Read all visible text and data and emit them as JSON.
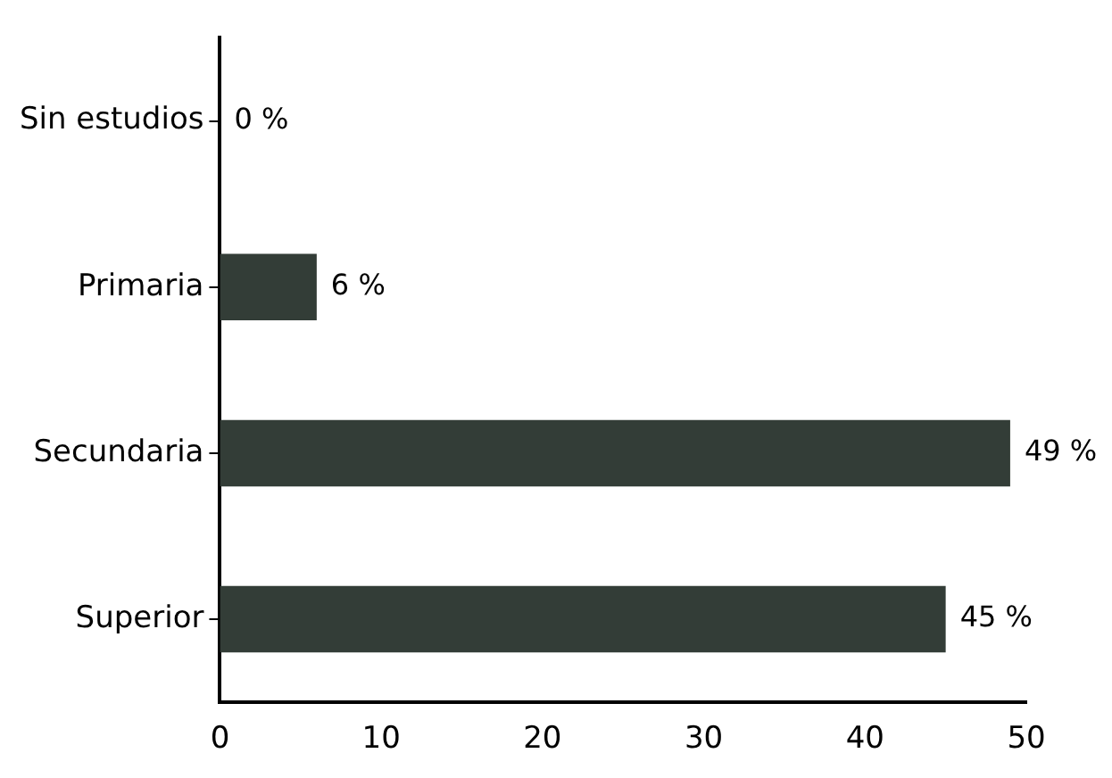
{
  "chart_data": {
    "type": "bar",
    "orientation": "horizontal",
    "categories": [
      "Sin estudios",
      "Primaria",
      "Secundaria",
      "Superior"
    ],
    "values": [
      0,
      6,
      49,
      45
    ],
    "value_labels": [
      "0 %",
      "6 %",
      "49 %",
      "45 %"
    ],
    "color": "#333d37",
    "xlim": [
      0,
      50
    ],
    "xticks": [
      0,
      10,
      20,
      30,
      40,
      50
    ],
    "grid": false,
    "legend": false
  }
}
